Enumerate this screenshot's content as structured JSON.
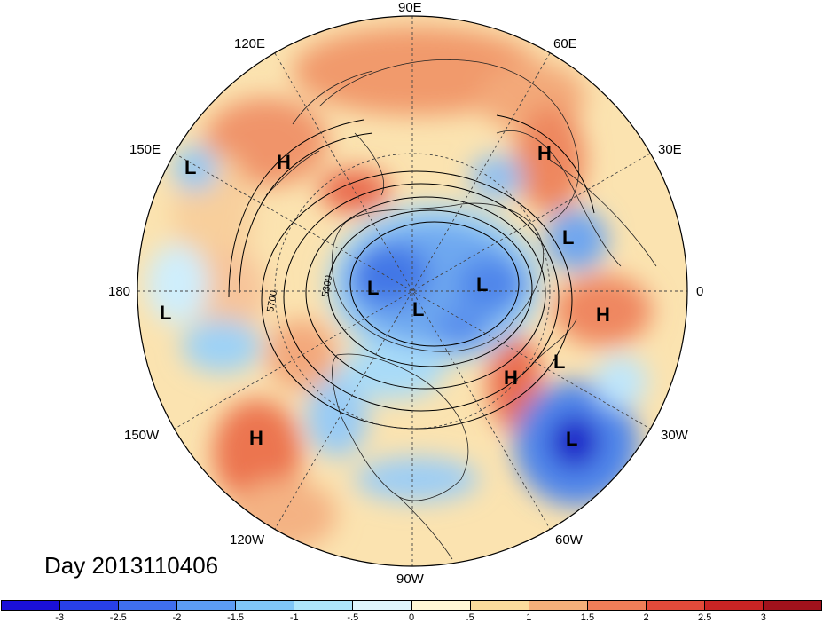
{
  "map": {
    "projection": "north polar stereographic",
    "day_label": "Day 2013110406",
    "longitude_labels": {
      "top": "90E",
      "top_left": "120E",
      "top_right": "60E",
      "upper_left": "150E",
      "upper_right": "30E",
      "left": "180",
      "right": "0",
      "lower_left": "150W",
      "lower_right": "30W",
      "bottom_left": "120W",
      "bottom_right": "60W",
      "bottom": "90W"
    },
    "contour_labels": [
      "5300",
      "5700"
    ],
    "pressure_centers": [
      "H",
      "L",
      "H",
      "L",
      "L",
      "L",
      "L",
      "L",
      "H",
      "L",
      "H",
      "H",
      "L"
    ]
  },
  "colorbar": {
    "ticks": [
      "-3",
      "-2.5",
      "-2",
      "-1.5",
      "-1",
      "-.5",
      "0",
      ".5",
      "1",
      "1.5",
      "2",
      "2.5",
      "3"
    ],
    "colors": [
      "#1a10d8",
      "#2840e8",
      "#3f6fef",
      "#5c9cf4",
      "#7fc6f7",
      "#aee6fb",
      "#dff6fd",
      "#fff7d6",
      "#fbdc9c",
      "#f6b07a",
      "#f07e58",
      "#e34a3a",
      "#c92424",
      "#a0121c"
    ]
  }
}
